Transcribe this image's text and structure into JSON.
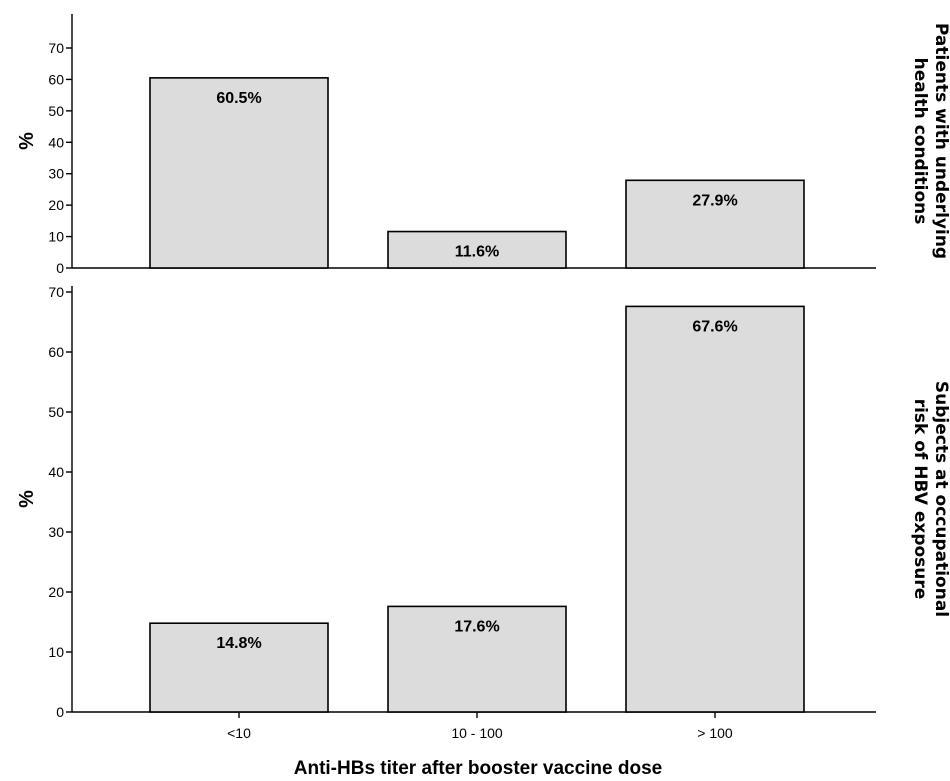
{
  "chart_data": {
    "type": "bar",
    "xlabel": "Anti-HBs titer after booster vaccine dose",
    "categories": [
      "<10",
      "10 - 100",
      "> 100"
    ],
    "ylim": [
      0,
      75
    ],
    "yticks": [
      0,
      10,
      20,
      30,
      40,
      50,
      60,
      70
    ],
    "panels": [
      {
        "title_lines": [
          "Patients with underlying",
          "health conditions"
        ],
        "ylabel": "%",
        "values": [
          60.5,
          11.6,
          27.9
        ],
        "labels": [
          "60.5%",
          "11.6%",
          "27.9%"
        ],
        "colors": {
          "bar": "#dcdcdc"
        }
      },
      {
        "title_lines": [
          "Subjects at occupational",
          "risk of HBV exposure"
        ],
        "ylabel": "%",
        "values": [
          14.8,
          17.6,
          67.6
        ],
        "labels": [
          "14.8%",
          "17.6%",
          "67.6%"
        ],
        "colors": {
          "bar": "#dcdcdc"
        }
      }
    ]
  }
}
